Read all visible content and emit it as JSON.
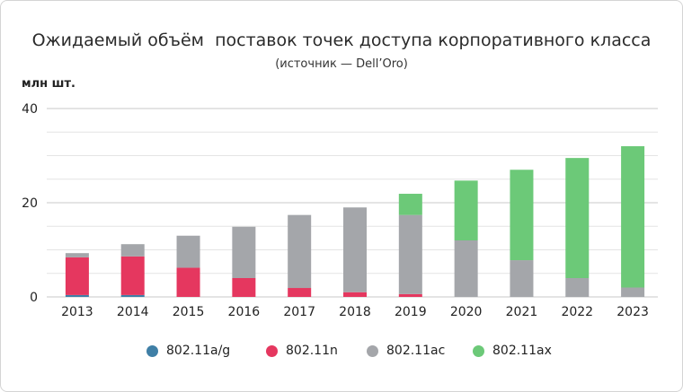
{
  "chart_data": {
    "type": "bar",
    "stacked": true,
    "title": "Ожидаемый объём  поставок точек доступа корпоративного класса",
    "subtitle": "(источник — Dell’Oro)",
    "ylabel": "млн шт.",
    "xlabel": "",
    "ylim": [
      0,
      40
    ],
    "yticks": [
      0,
      20,
      40
    ],
    "grid": true,
    "legend_position": "bottom",
    "categories": [
      "2013",
      "2014",
      "2015",
      "2016",
      "2017",
      "2018",
      "2019",
      "2020",
      "2021",
      "2022",
      "2023"
    ],
    "series": [
      {
        "name": "802.11a/g",
        "color": "#3f7fa6",
        "values": [
          0.4,
          0.4,
          0,
          0,
          0,
          0,
          0,
          0,
          0,
          0,
          0
        ]
      },
      {
        "name": "802.11n",
        "color": "#e5375f",
        "values": [
          8.0,
          8.2,
          6.2,
          4.0,
          1.9,
          1.0,
          0.6,
          0,
          0,
          0,
          0
        ]
      },
      {
        "name": "802.11ac",
        "color": "#a4a6aa",
        "values": [
          0.9,
          2.6,
          6.8,
          10.9,
          15.5,
          18.0,
          16.8,
          12.0,
          7.8,
          4.0,
          2.0
        ]
      },
      {
        "name": "802.11ax",
        "color": "#6cc978",
        "values": [
          0,
          0,
          0,
          0,
          0,
          0,
          4.5,
          12.7,
          19.2,
          25.5,
          30.0
        ]
      }
    ]
  }
}
